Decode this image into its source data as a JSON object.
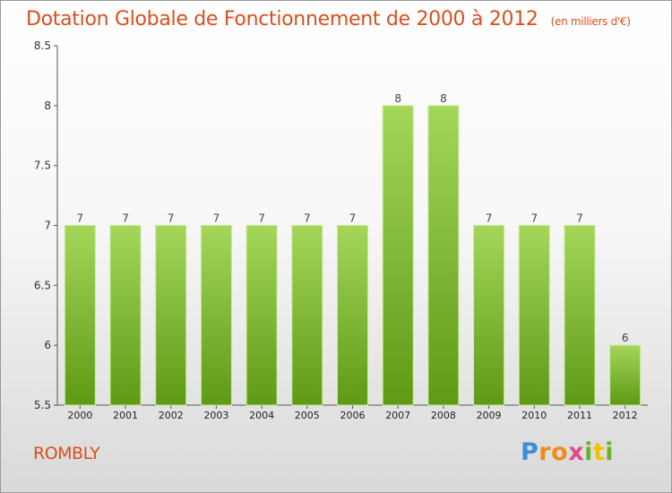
{
  "header": {
    "title": "Dotation Globale de Fonctionnement de 2000 à 2012",
    "subtitle": "(en milliers d'€)"
  },
  "footer": {
    "commune": "ROMBLY",
    "brand": "Proxiti"
  },
  "colors": {
    "title": "#d94f1e",
    "bar_top": "#a4d65a",
    "bar_bottom": "#5e9a15",
    "bar_edge": "#c9ec92"
  },
  "chart_data": {
    "type": "bar",
    "title": "Dotation Globale de Fonctionnement de 2000 à 2012",
    "subtitle": "(en milliers d'€)",
    "categories": [
      "2000",
      "2001",
      "2002",
      "2003",
      "2004",
      "2005",
      "2006",
      "2007",
      "2008",
      "2009",
      "2010",
      "2011",
      "2012"
    ],
    "values": [
      7,
      7,
      7,
      7,
      7,
      7,
      7,
      8,
      8,
      7,
      7,
      7,
      6
    ],
    "data_labels": [
      "7",
      "7",
      "7",
      "7",
      "7",
      "7",
      "7",
      "8",
      "8",
      "7",
      "7",
      "7",
      "6"
    ],
    "ylim": [
      5.5,
      8.5
    ],
    "yticks": [
      5.5,
      6,
      6.5,
      7,
      7.5,
      8,
      8.5
    ],
    "ytick_labels": [
      "5.5",
      "6",
      "6.5",
      "7",
      "7.5",
      "8",
      "8.5"
    ],
    "grid": false,
    "legend": "none"
  }
}
